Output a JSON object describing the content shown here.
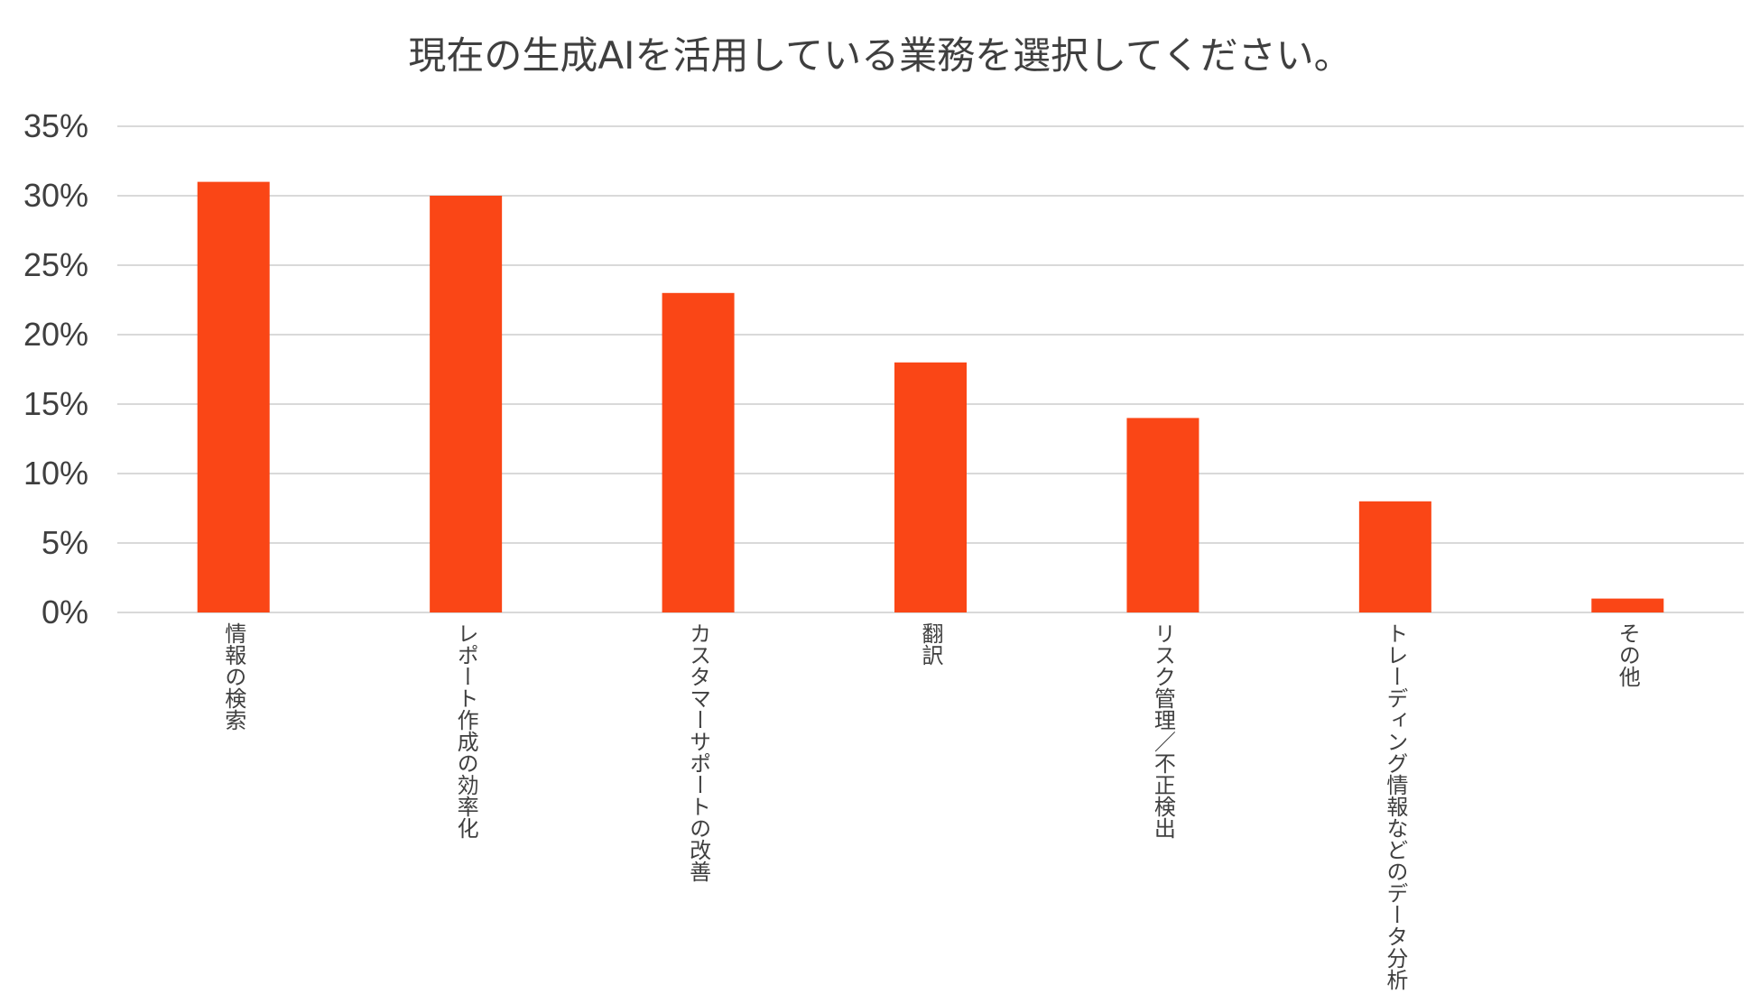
{
  "chart_data": {
    "type": "bar",
    "title": "現在の生成AIを活用している業務を選択してください。",
    "categories": [
      "情報の検索",
      "レポート作成の効率化",
      "カスタマーサポートの改善",
      "翻訳",
      "リスク管理／不正検出",
      "トレーディング情報などのデータ分析",
      "その他"
    ],
    "values": [
      0.31,
      0.3,
      0.23,
      0.18,
      0.14,
      0.08,
      0.01
    ],
    "ylim": [
      0,
      0.35
    ],
    "yticks": [
      "0%",
      "5%",
      "10%",
      "15%",
      "20%",
      "25%",
      "30%",
      "35%"
    ],
    "grid": true,
    "legend": "none",
    "colors": {
      "bar": "#fa4616",
      "grid": "#d9d9d9",
      "text": "#3f3f3f"
    }
  }
}
